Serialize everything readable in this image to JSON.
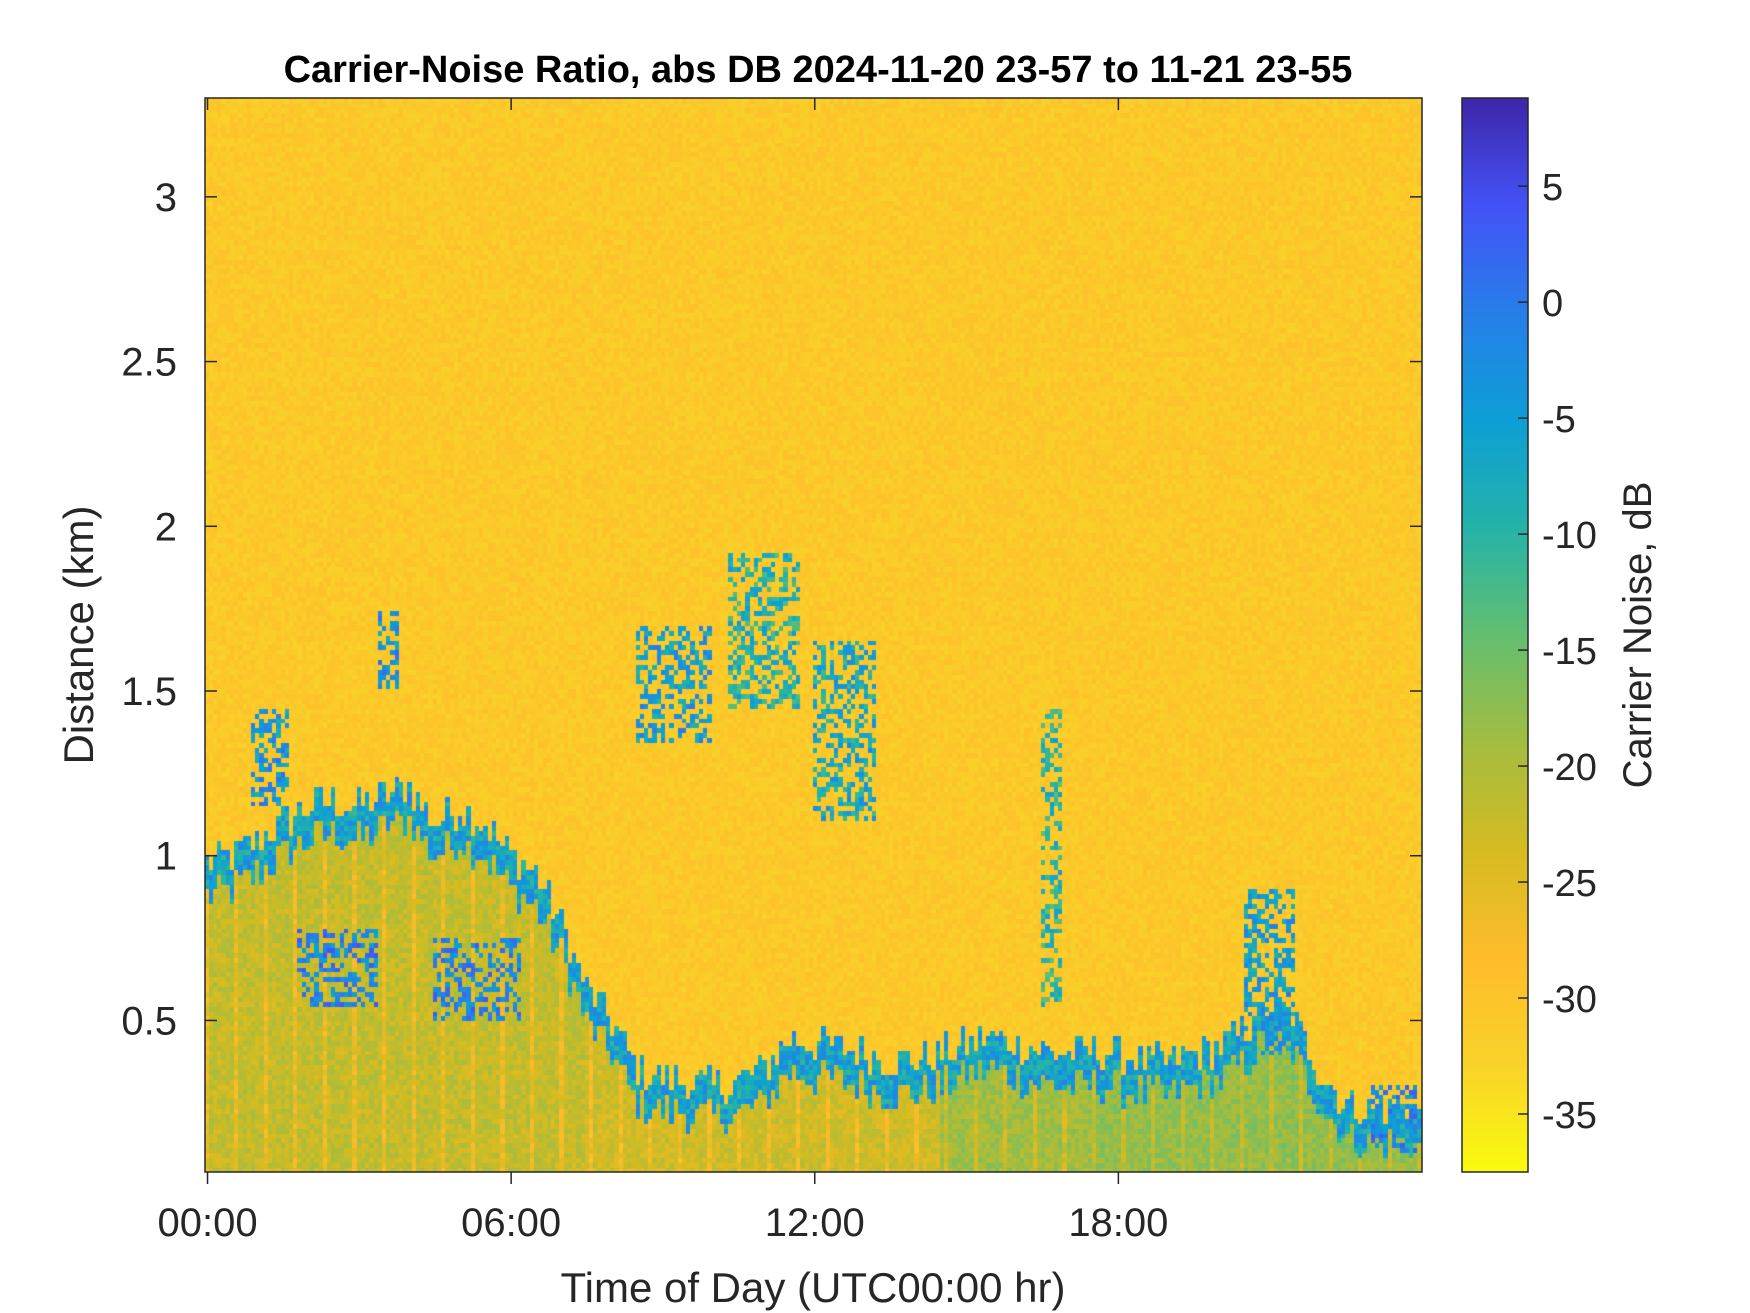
{
  "chart_data": {
    "type": "heatmap",
    "title": "Carrier-Noise Ratio, abs DB 2024-11-20 23-57 to 11-21 23-55",
    "xlabel": "Time of Day (UTC00:00 hr)",
    "ylabel": "Distance (km)",
    "colorbar_label": "Carrier Noise, dB",
    "x_unit": "hours of day (UTC)",
    "xlim": [
      -0.05,
      24.0
    ],
    "ylim": [
      0.04,
      3.3
    ],
    "clim": [
      -37.5,
      8.8
    ],
    "x_ticks": [
      0,
      6,
      12,
      18
    ],
    "x_tick_labels": [
      "00:00",
      "06:00",
      "12:00",
      "18:00"
    ],
    "y_ticks": [
      0.5,
      1,
      1.5,
      2,
      2.5,
      3
    ],
    "y_tick_labels": [
      "0.5",
      "1",
      "1.5",
      "2",
      "2.5",
      "3"
    ],
    "colorbar_ticks": [
      -35,
      -30,
      -25,
      -20,
      -15,
      -10,
      -5,
      0,
      5
    ],
    "colorbar_tick_labels": [
      "-35",
      "-30",
      "-25",
      "-20",
      "-15",
      "-10",
      "-5",
      "0",
      "5"
    ],
    "colormap": "parula",
    "grid": false,
    "background_value_dB": -31,
    "near_ground_value_dB": -22,
    "layer_peak_dB": 0,
    "boundary_layer_top_km": [
      [
        0.0,
        0.93
      ],
      [
        0.5,
        0.95
      ],
      [
        1.0,
        1.0
      ],
      [
        1.5,
        1.05
      ],
      [
        2.0,
        1.1
      ],
      [
        2.5,
        1.12
      ],
      [
        3.0,
        1.1
      ],
      [
        3.5,
        1.14
      ],
      [
        4.0,
        1.16
      ],
      [
        4.5,
        1.05
      ],
      [
        5.0,
        1.1
      ],
      [
        5.5,
        1.05
      ],
      [
        6.0,
        0.95
      ],
      [
        6.5,
        0.9
      ],
      [
        7.0,
        0.75
      ],
      [
        7.5,
        0.55
      ],
      [
        8.0,
        0.45
      ],
      [
        8.5,
        0.3
      ],
      [
        9.0,
        0.28
      ],
      [
        9.5,
        0.27
      ],
      [
        10.0,
        0.25
      ],
      [
        10.5,
        0.27
      ],
      [
        11.0,
        0.3
      ],
      [
        11.5,
        0.4
      ],
      [
        12.0,
        0.38
      ],
      [
        12.5,
        0.37
      ],
      [
        13.0,
        0.35
      ],
      [
        13.5,
        0.33
      ],
      [
        14.0,
        0.33
      ],
      [
        14.5,
        0.35
      ],
      [
        15.0,
        0.38
      ],
      [
        15.5,
        0.4
      ],
      [
        16.0,
        0.38
      ],
      [
        16.5,
        0.36
      ],
      [
        17.0,
        0.35
      ],
      [
        17.5,
        0.36
      ],
      [
        18.0,
        0.35
      ],
      [
        18.5,
        0.33
      ],
      [
        19.0,
        0.32
      ],
      [
        19.5,
        0.35
      ],
      [
        20.0,
        0.37
      ],
      [
        20.5,
        0.42
      ],
      [
        21.0,
        0.5
      ],
      [
        21.5,
        0.45
      ],
      [
        22.0,
        0.3
      ],
      [
        22.5,
        0.2
      ],
      [
        23.0,
        0.18
      ],
      [
        23.5,
        0.18
      ],
      [
        24.0,
        0.17
      ]
    ],
    "features": [
      {
        "x": [
          1.8,
          3.4
        ],
        "y": [
          0.55,
          0.78
        ],
        "peak_dB": -1
      },
      {
        "x": [
          4.5,
          6.2
        ],
        "y": [
          0.5,
          0.75
        ],
        "peak_dB": -1
      },
      {
        "x": [
          3.4,
          3.8
        ],
        "y": [
          1.5,
          1.75
        ],
        "peak_dB": -3
      },
      {
        "x": [
          0.9,
          1.6
        ],
        "y": [
          1.15,
          1.45
        ],
        "peak_dB": -4
      },
      {
        "x": [
          8.5,
          10.0
        ],
        "y": [
          1.35,
          1.7
        ],
        "peak_dB": -5
      },
      {
        "x": [
          10.3,
          11.7
        ],
        "y": [
          1.45,
          1.92
        ],
        "peak_dB": -9
      },
      {
        "x": [
          12.0,
          13.2
        ],
        "y": [
          1.1,
          1.65
        ],
        "peak_dB": -7
      },
      {
        "x": [
          16.5,
          16.9
        ],
        "y": [
          0.55,
          1.45
        ],
        "peak_dB": -10
      },
      {
        "x": [
          20.5,
          21.5
        ],
        "y": [
          0.4,
          0.9
        ],
        "peak_dB": -5
      },
      {
        "x": [
          23.0,
          23.9
        ],
        "y": [
          0.1,
          0.3
        ],
        "peak_dB": -2
      }
    ]
  }
}
